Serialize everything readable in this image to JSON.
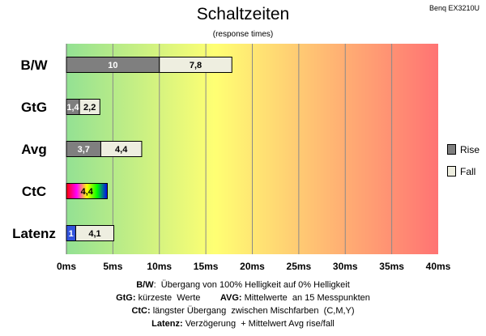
{
  "header": {
    "title": "Schaltzeiten",
    "subtitle": "(response times)",
    "monitor": "Benq EX3210U"
  },
  "chart_data": {
    "type": "bar",
    "orientation": "horizontal",
    "stacked": true,
    "categories": [
      "B/W",
      "GtG",
      "Avg",
      "CtC",
      "Latenz"
    ],
    "series": [
      {
        "name": "Rise",
        "values": [
          10,
          1.4,
          3.7,
          4.4,
          1
        ],
        "labels": [
          "10",
          "1,4",
          "3,7",
          "4,4",
          "1"
        ]
      },
      {
        "name": "Fall",
        "values": [
          7.8,
          2.2,
          4.4,
          null,
          4.1
        ],
        "labels": [
          "7,8",
          "2,2",
          "4,4",
          "",
          "4,1"
        ]
      }
    ],
    "x_ticks": [
      "0ms",
      "5ms",
      "10ms",
      "15ms",
      "20ms",
      "25ms",
      "30ms",
      "35ms",
      "40ms"
    ],
    "xlim": [
      0,
      40
    ],
    "grid": true,
    "legend": "right",
    "colors": {
      "rise": "#7f7f7f",
      "fall": "#eeeee0",
      "ctc_gradient": [
        "#ff0000",
        "#ff00ff",
        "#ffff00",
        "#00ff00",
        "#0000ff"
      ],
      "latency": "#3355dd",
      "background_gradient": [
        "#93e193",
        "#ffff73",
        "#ff7373"
      ]
    }
  },
  "notes": [
    {
      "parts": [
        {
          "b": "B/W"
        },
        {
          "t": ":  Übergang von 100% Helligkeit auf 0% Helligkeit"
        }
      ]
    },
    {
      "parts": [
        {
          "b": "GtG:"
        },
        {
          "t": " kürzeste  Werte        "
        },
        {
          "b": "AVG:"
        },
        {
          "t": " Mittelwerte  an 15 Messpunkten"
        }
      ]
    },
    {
      "parts": [
        {
          "b": "CtC:"
        },
        {
          "t": " längster Übergang  zwischen Mischfarben  (C,M,Y)"
        }
      ]
    },
    {
      "parts": [
        {
          "b": "Latenz:"
        },
        {
          "t": " Verzögerung  + Mittelwert Avg rise/fall"
        }
      ]
    }
  ]
}
